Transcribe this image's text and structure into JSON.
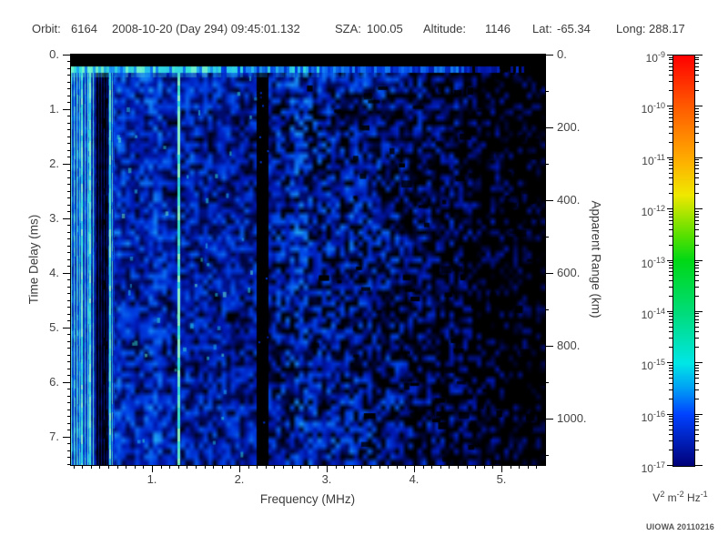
{
  "header": {
    "orbit_label": "Orbit:",
    "orbit_value": "6164",
    "datetime": "2008-10-20 (Day 294) 09:45:01.132",
    "sza_label": "SZA:",
    "sza_value": "100.05",
    "altitude_label": "Altitude:",
    "altitude_value": "1146",
    "lat_label": "Lat:",
    "lat_value": "-65.34",
    "long_label": "Long:",
    "long_value": "288.17"
  },
  "chart_data": {
    "type": "heatmap",
    "description": "Radar sounder ionogram: received spectral density vs frequency and time delay",
    "x_axis": {
      "label": "Frequency (MHz)",
      "range": [
        0.073,
        5.5
      ],
      "major_tick_values": [
        1,
        2,
        3,
        4,
        5
      ],
      "major_tick_labels": [
        "1.",
        "2.",
        "3.",
        "4.",
        "5."
      ],
      "minor_tick_step": 0.1
    },
    "y_axis": {
      "label": "Time Delay (ms)",
      "range": [
        0,
        7.517
      ],
      "major_tick_values": [
        0,
        1,
        2,
        3,
        4,
        5,
        6,
        7
      ],
      "major_tick_labels": [
        "0.",
        "1.",
        "2.",
        "3.",
        "4.",
        "5.",
        "6.",
        "7."
      ],
      "minor_tick_step": 0.125
    },
    "right_axis": {
      "label": "Apparent Range (km)",
      "range": [
        0,
        1127
      ],
      "major_tick_values": [
        0,
        200,
        400,
        600,
        800,
        1000
      ],
      "major_tick_labels": [
        "0.",
        "200.",
        "400.",
        "600.",
        "800.",
        "1000."
      ],
      "minor_tick_step": 100
    },
    "colorbar": {
      "scale": "log",
      "base_label": "10",
      "exponents": [
        "-9",
        "-10",
        "-11",
        "-12",
        "-13",
        "-14",
        "-15",
        "-16",
        "-17"
      ],
      "units_parts": [
        {
          "base": "V",
          "exp": "2"
        },
        {
          "base": "m",
          "exp": "-2"
        },
        {
          "base": "Hz",
          "exp": "-1"
        }
      ],
      "gradient": [
        {
          "pos": 0.0,
          "color": "#ff0000"
        },
        {
          "pos": 0.125,
          "color": "#ff5a00"
        },
        {
          "pos": 0.25,
          "color": "#ffaa00"
        },
        {
          "pos": 0.34,
          "color": "#f0e800"
        },
        {
          "pos": 0.44,
          "color": "#55e000"
        },
        {
          "pos": 0.5,
          "color": "#00d816"
        },
        {
          "pos": 0.625,
          "color": "#00dc78"
        },
        {
          "pos": 0.75,
          "color": "#00e6e6"
        },
        {
          "pos": 0.81,
          "color": "#00a0f5"
        },
        {
          "pos": 0.875,
          "color": "#0041ff"
        },
        {
          "pos": 1.0,
          "color": "#000078"
        }
      ]
    },
    "spectrogram": {
      "noise_seed": 1337,
      "palette": [
        {
          "pos": 0.0,
          "color": "#000000"
        },
        {
          "pos": 0.12,
          "color": "#000850"
        },
        {
          "pos": 0.28,
          "color": "#0018b4"
        },
        {
          "pos": 0.45,
          "color": "#0044e8"
        },
        {
          "pos": 0.6,
          "color": "#1482f5"
        },
        {
          "pos": 0.74,
          "color": "#28c8f0"
        },
        {
          "pos": 0.87,
          "color": "#3cf0d2"
        },
        {
          "pos": 1.0,
          "color": "#96ffc8"
        }
      ],
      "intensity_profile": [
        {
          "f": [
            0.073,
            0.33
          ],
          "level": 0.78
        },
        {
          "f": [
            0.33,
            0.5
          ],
          "level": 0.3
        },
        {
          "f": [
            0.5,
            2.2
          ],
          "level": 0.6
        },
        {
          "f": [
            2.2,
            2.33
          ],
          "level": 0.05
        },
        {
          "f": [
            2.33,
            3.3
          ],
          "level": 0.56
        },
        {
          "f": [
            3.3,
            3.9
          ],
          "level": 0.5
        },
        {
          "f": [
            3.9,
            4.5
          ],
          "level": 0.38
        },
        {
          "f": [
            4.5,
            5.5
          ],
          "level": 0.3
        }
      ],
      "bright_lines_mhz": [
        0.19,
        0.28,
        0.51,
        1.29
      ],
      "dark_band_sharp_mhz": [
        2.2,
        2.33
      ],
      "streak_zone_mhz": [
        0.073,
        0.56
      ],
      "top_band_delay_ms": 0.22,
      "surface_stripe_delay_ms": [
        0.22,
        0.33
      ]
    },
    "footer": "UIOWA 20110216"
  }
}
